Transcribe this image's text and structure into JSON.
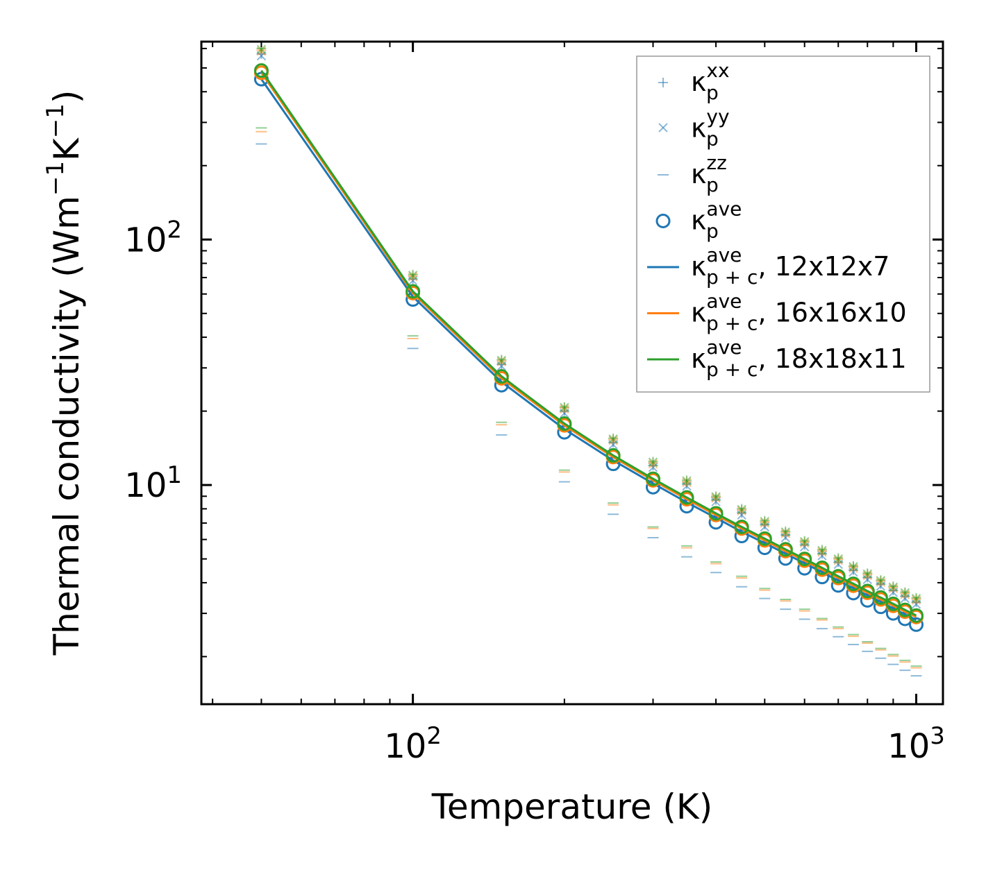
{
  "chart_data": {
    "type": "line",
    "xscale": "log",
    "yscale": "log",
    "xlim": [
      38,
      1130
    ],
    "ylim": [
      1.28,
      640
    ],
    "xlabel": "Temperature (K)",
    "ylabel_prefix": "Thermal conductivity (Wm",
    "ylabel_exp1": "−1",
    "ylabel_mid": "K",
    "ylabel_exp2": "−1",
    "ylabel_suffix": ")",
    "xticks": [
      {
        "value": 100,
        "base": "10",
        "exp": "2"
      },
      {
        "value": 1000,
        "base": "10",
        "exp": "3"
      }
    ],
    "yticks": [
      {
        "value": 10,
        "base": "10",
        "exp": "1"
      },
      {
        "value": 100,
        "base": "10",
        "exp": "2"
      }
    ],
    "temperatures": [
      50,
      100,
      150,
      200,
      250,
      300,
      350,
      400,
      450,
      500,
      550,
      600,
      650,
      700,
      750,
      800,
      850,
      900,
      950,
      1000
    ],
    "meshes": [
      {
        "name": "12x12x7",
        "color": "#1f77b4",
        "kappa_xx": [
          570,
          69,
          31,
          20,
          14.9,
          12.0,
          10.1,
          8.7,
          7.7,
          6.9,
          6.25,
          5.7,
          5.25,
          4.85,
          4.5,
          4.2,
          3.95,
          3.72,
          3.52,
          3.33
        ],
        "kappa_yy": [
          560,
          68,
          30.5,
          19.6,
          14.6,
          11.8,
          9.9,
          8.55,
          7.55,
          6.75,
          6.1,
          5.6,
          5.15,
          4.75,
          4.42,
          4.12,
          3.87,
          3.65,
          3.45,
          3.27
        ],
        "kappa_zz": [
          245,
          36,
          16,
          10.3,
          7.6,
          6.1,
          5.1,
          4.4,
          3.85,
          3.45,
          3.12,
          2.84,
          2.6,
          2.41,
          2.24,
          2.1,
          1.97,
          1.86,
          1.76,
          1.67
        ],
        "kappa_ave": [
          450,
          57,
          25.5,
          16.4,
          12.2,
          9.8,
          8.2,
          7.05,
          6.2,
          5.55,
          5.02,
          4.58,
          4.22,
          3.9,
          3.63,
          3.39,
          3.19,
          3.0,
          2.85,
          2.7
        ],
        "kappa_pc": [
          450,
          58.5,
          26.3,
          16.9,
          12.6,
          10.15,
          8.5,
          7.35,
          6.45,
          5.8,
          5.25,
          4.8,
          4.42,
          4.08,
          3.8,
          3.55,
          3.34,
          3.14,
          2.97,
          2.82
        ]
      },
      {
        "name": "16x16x10",
        "color": "#ff7f0e",
        "kappa_xx": [
          590,
          71,
          32,
          20.6,
          15.3,
          12.3,
          10.3,
          8.9,
          7.9,
          7.05,
          6.4,
          5.85,
          5.38,
          4.98,
          4.63,
          4.32,
          4.06,
          3.82,
          3.62,
          3.43
        ],
        "kappa_yy": [
          585,
          70.5,
          31.8,
          20.4,
          15.2,
          12.2,
          10.25,
          8.85,
          7.85,
          7.0,
          6.35,
          5.8,
          5.33,
          4.93,
          4.58,
          4.28,
          4.02,
          3.79,
          3.58,
          3.4
        ],
        "kappa_zz": [
          275,
          39.5,
          17.6,
          11.3,
          8.3,
          6.65,
          5.55,
          4.78,
          4.18,
          3.73,
          3.37,
          3.07,
          2.82,
          2.6,
          2.42,
          2.27,
          2.13,
          2.01,
          1.9,
          1.8
        ],
        "kappa_ave": [
          478,
          60.5,
          27.2,
          17.5,
          13.0,
          10.45,
          8.75,
          7.55,
          6.65,
          5.95,
          5.38,
          4.92,
          4.52,
          4.18,
          3.89,
          3.64,
          3.42,
          3.22,
          3.05,
          2.9
        ],
        "kappa_pc": [
          478,
          60.5,
          27.2,
          17.5,
          13.0,
          10.45,
          8.75,
          7.55,
          6.65,
          5.95,
          5.38,
          4.92,
          4.52,
          4.18,
          3.89,
          3.64,
          3.42,
          3.22,
          3.05,
          2.9
        ]
      },
      {
        "name": "18x18x11",
        "color": "#2ca02c",
        "kappa_xx": [
          600,
          72,
          32.4,
          20.8,
          15.5,
          12.45,
          10.45,
          9.0,
          8.0,
          7.15,
          6.48,
          5.92,
          5.45,
          5.04,
          4.68,
          4.37,
          4.1,
          3.87,
          3.66,
          3.47
        ],
        "kappa_yy": [
          595,
          71.5,
          32.2,
          20.7,
          15.4,
          12.4,
          10.4,
          8.95,
          7.95,
          7.1,
          6.44,
          5.88,
          5.41,
          5.0,
          4.65,
          4.34,
          4.08,
          3.84,
          3.64,
          3.45
        ],
        "kappa_zz": [
          285,
          40.5,
          18.0,
          11.5,
          8.45,
          6.75,
          5.65,
          4.86,
          4.25,
          3.79,
          3.42,
          3.12,
          2.86,
          2.64,
          2.46,
          2.3,
          2.16,
          2.04,
          1.93,
          1.83
        ],
        "kappa_ave": [
          488,
          61.5,
          27.7,
          17.8,
          13.2,
          10.6,
          8.9,
          7.67,
          6.75,
          6.05,
          5.47,
          5.0,
          4.6,
          4.25,
          3.96,
          3.7,
          3.48,
          3.28,
          3.1,
          2.94
        ],
        "kappa_pc": [
          488,
          61.5,
          27.7,
          17.8,
          13.2,
          10.6,
          8.9,
          7.67,
          6.75,
          6.05,
          5.47,
          5.0,
          4.6,
          4.25,
          3.96,
          3.7,
          3.48,
          3.28,
          3.1,
          2.94
        ]
      }
    ],
    "legend": {
      "position": "top-right",
      "kappa_symbol": "κ",
      "entries": [
        {
          "marker": "plus",
          "sub": "p",
          "sup": "xx",
          "suffix": ""
        },
        {
          "marker": "x",
          "sub": "p",
          "sup": "yy",
          "suffix": ""
        },
        {
          "marker": "dash",
          "sub": "p",
          "sup": "zz",
          "suffix": ""
        },
        {
          "marker": "circle",
          "sub": "p",
          "sup": "ave",
          "suffix": ""
        },
        {
          "marker": "line",
          "sub": "p + c",
          "sup": "ave",
          "suffix": ", 12x12x7",
          "color": "#1f77b4"
        },
        {
          "marker": "line",
          "sub": "p + c",
          "sup": "ave",
          "suffix": ", 16x16x10",
          "color": "#ff7f0e"
        },
        {
          "marker": "line",
          "sub": "p + c",
          "sup": "ave",
          "suffix": ", 18x18x11",
          "color": "#2ca02c"
        }
      ]
    }
  }
}
